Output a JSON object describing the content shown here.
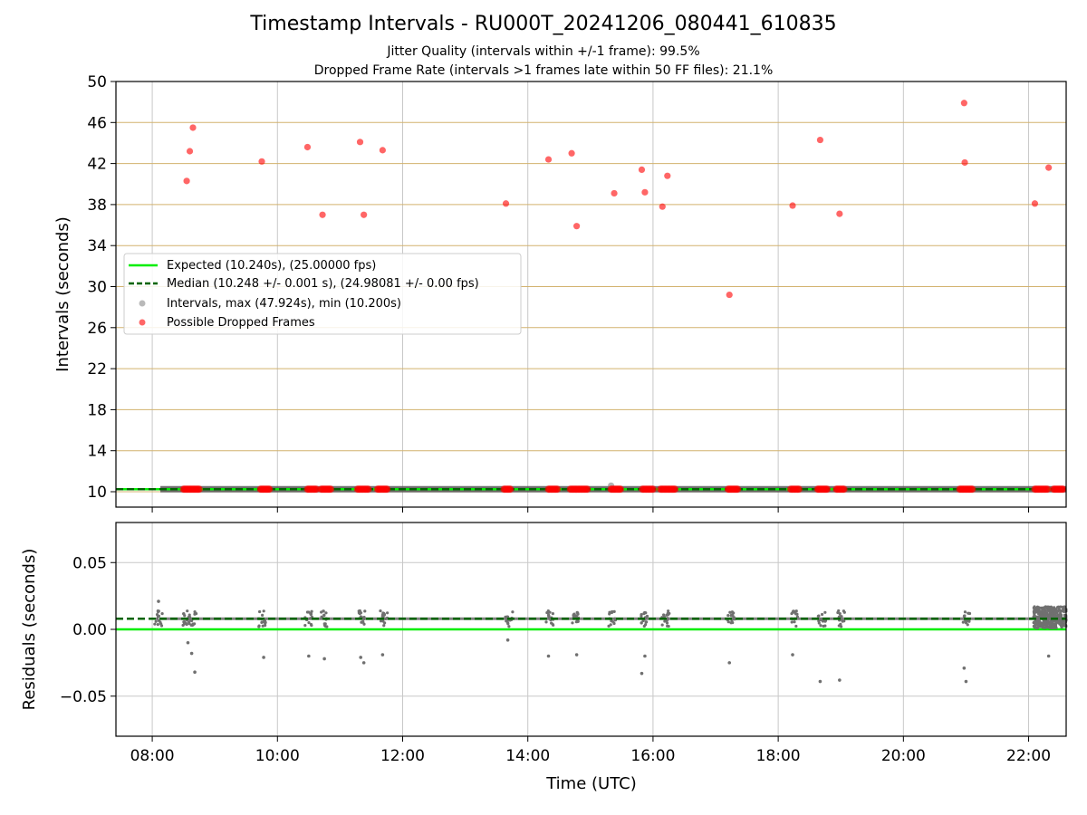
{
  "title": "Timestamp Intervals - RU000T_20241206_080441_610835",
  "subtitle_lines": [
    "Jitter Quality (intervals within +/-1 frame): 99.5%",
    "Dropped Frame Rate (intervals >1 frames late within 50 FF files): 21.1%"
  ],
  "colors": {
    "expected": "#00ee00",
    "median": "#006400",
    "intervals": "#808080",
    "dropped": "#ff0000",
    "hgrid_top": "#d2b26e",
    "grid": "#c8c8c8"
  },
  "chart_data": [
    {
      "type": "scatter",
      "panel": "intervals",
      "xlabel": "",
      "ylabel": "Intervals (seconds)",
      "x_unit": "hours UTC",
      "xlim": [
        7.42,
        22.6
      ],
      "ylim": [
        8.5,
        50
      ],
      "yticks": [
        10,
        14,
        18,
        22,
        26,
        30,
        34,
        38,
        42,
        46,
        50
      ],
      "grid": true,
      "legend_position": "center-left",
      "legend": [
        "Expected (10.240s), (25.00000 fps)",
        "Median (10.248 +/- 0.001 s), (24.98081 +/- 0.00 fps)",
        "Intervals, max (47.924s), min (10.200s)",
        "Possible Dropped Frames"
      ],
      "expected_line": 10.24,
      "median_line": 10.248,
      "intervals_range": [
        8.13,
        22.6
      ],
      "intervals_value": 10.248,
      "interval_outliers": [
        {
          "x": 15.33,
          "y": 10.6
        }
      ],
      "dropped_frames": [
        {
          "x": 8.55,
          "y": 40.3
        },
        {
          "x": 8.6,
          "y": 43.2
        },
        {
          "x": 8.65,
          "y": 45.5
        },
        {
          "x": 9.75,
          "y": 42.2
        },
        {
          "x": 10.48,
          "y": 43.6
        },
        {
          "x": 10.72,
          "y": 37.0
        },
        {
          "x": 11.32,
          "y": 44.1
        },
        {
          "x": 11.38,
          "y": 37.0
        },
        {
          "x": 11.68,
          "y": 43.3
        },
        {
          "x": 13.65,
          "y": 38.1
        },
        {
          "x": 14.33,
          "y": 42.4
        },
        {
          "x": 14.7,
          "y": 43.0
        },
        {
          "x": 14.78,
          "y": 35.9
        },
        {
          "x": 15.38,
          "y": 39.1
        },
        {
          "x": 15.82,
          "y": 41.4
        },
        {
          "x": 15.87,
          "y": 39.2
        },
        {
          "x": 16.15,
          "y": 37.8
        },
        {
          "x": 16.23,
          "y": 40.8
        },
        {
          "x": 17.22,
          "y": 29.2
        },
        {
          "x": 18.23,
          "y": 37.9
        },
        {
          "x": 18.67,
          "y": 44.3
        },
        {
          "x": 18.98,
          "y": 37.1
        },
        {
          "x": 20.97,
          "y": 47.9
        },
        {
          "x": 20.98,
          "y": 42.1
        },
        {
          "x": 22.1,
          "y": 38.1
        },
        {
          "x": 22.32,
          "y": 41.6
        }
      ],
      "dropped_clusters_at_median": [
        [
          8.5,
          8.75
        ],
        [
          9.73,
          9.87
        ],
        [
          10.48,
          10.62
        ],
        [
          10.7,
          10.85
        ],
        [
          11.28,
          11.45
        ],
        [
          11.6,
          11.75
        ],
        [
          13.62,
          13.72
        ],
        [
          14.33,
          14.47
        ],
        [
          14.68,
          14.95
        ],
        [
          15.33,
          15.48
        ],
        [
          15.83,
          16.0
        ],
        [
          16.12,
          16.35
        ],
        [
          17.2,
          17.35
        ],
        [
          18.2,
          18.33
        ],
        [
          18.63,
          18.78
        ],
        [
          18.93,
          19.05
        ],
        [
          20.9,
          21.1
        ],
        [
          22.1,
          22.3
        ],
        [
          22.4,
          22.55
        ]
      ]
    },
    {
      "type": "scatter",
      "panel": "residuals",
      "xlabel": "Time (UTC)",
      "ylabel": "Residuals (seconds)",
      "x_unit": "hours UTC",
      "xlim": [
        7.42,
        22.6
      ],
      "ylim": [
        -0.08,
        0.08
      ],
      "yticks": [
        -0.05,
        0.0,
        0.05
      ],
      "ytick_labels": [
        "−0.05",
        "0.00",
        "0.05"
      ],
      "xticks": [
        8,
        10,
        12,
        14,
        16,
        18,
        20,
        22
      ],
      "xtick_labels": [
        "08:00",
        "10:00",
        "12:00",
        "14:00",
        "16:00",
        "18:00",
        "20:00",
        "22:00"
      ],
      "grid": true,
      "expected_line": 0.0,
      "median_line": 0.008,
      "baseline_range": [
        8.13,
        22.6
      ],
      "baseline_value": 0.008,
      "cluster_hours": [
        8.1,
        8.55,
        8.65,
        9.75,
        10.5,
        10.75,
        11.35,
        11.7,
        13.7,
        14.35,
        14.75,
        15.35,
        15.85,
        16.2,
        17.25,
        18.25,
        18.7,
        19.0,
        21.0
      ],
      "dense_region": [
        22.08,
        22.6
      ],
      "outliers": [
        {
          "x": 8.1,
          "y": 0.021
        },
        {
          "x": 8.57,
          "y": -0.01
        },
        {
          "x": 8.63,
          "y": -0.018
        },
        {
          "x": 8.68,
          "y": -0.032
        },
        {
          "x": 9.78,
          "y": -0.021
        },
        {
          "x": 10.5,
          "y": -0.02
        },
        {
          "x": 10.75,
          "y": -0.022
        },
        {
          "x": 11.33,
          "y": -0.021
        },
        {
          "x": 11.38,
          "y": -0.025
        },
        {
          "x": 11.68,
          "y": -0.019
        },
        {
          "x": 13.68,
          "y": -0.008
        },
        {
          "x": 14.33,
          "y": -0.02
        },
        {
          "x": 14.78,
          "y": -0.019
        },
        {
          "x": 15.82,
          "y": -0.033
        },
        {
          "x": 15.87,
          "y": -0.02
        },
        {
          "x": 17.22,
          "y": -0.025
        },
        {
          "x": 18.23,
          "y": -0.019
        },
        {
          "x": 18.67,
          "y": -0.039
        },
        {
          "x": 18.98,
          "y": -0.038
        },
        {
          "x": 20.97,
          "y": -0.029
        },
        {
          "x": 21.0,
          "y": -0.039
        },
        {
          "x": 22.32,
          "y": -0.02
        }
      ]
    }
  ]
}
